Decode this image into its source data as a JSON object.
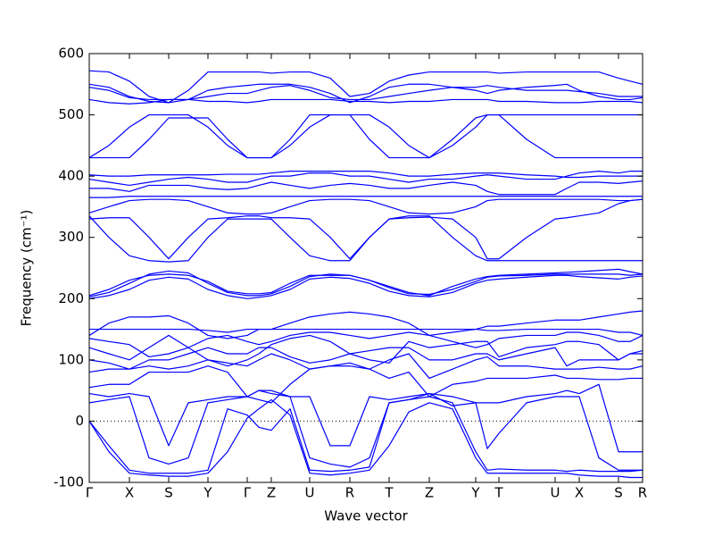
{
  "chart_data": {
    "type": "line",
    "xlabel": "Wave vector",
    "ylabel": "Frequency (cm⁻¹)",
    "color": "#0000ff",
    "x": [
      0,
      22,
      45,
      67,
      89,
      111,
      133,
      155,
      177,
      190,
      204,
      225,
      247,
      270,
      292,
      314,
      336,
      358,
      381,
      407,
      433,
      446,
      459,
      490,
      522,
      535,
      549,
      571,
      593,
      606,
      620
    ],
    "xlim": [
      0,
      620
    ],
    "xticks": [
      {
        "value": 0,
        "label": "Γ"
      },
      {
        "value": 45,
        "label": "X"
      },
      {
        "value": 89,
        "label": "S"
      },
      {
        "value": 133,
        "label": "Y"
      },
      {
        "value": 177,
        "label": "Γ"
      },
      {
        "value": 204,
        "label": "Z"
      },
      {
        "value": 247,
        "label": "U"
      },
      {
        "value": 292,
        "label": "R"
      },
      {
        "value": 336,
        "label": "T"
      },
      {
        "value": 381,
        "label": "Z"
      },
      {
        "value": 433,
        "label": "Y"
      },
      {
        "value": 459,
        "label": "T"
      },
      {
        "value": 522,
        "label": "U"
      },
      {
        "value": 549,
        "label": "X"
      },
      {
        "value": 593,
        "label": "S"
      },
      {
        "value": 620,
        "label": "R"
      }
    ],
    "ylim": [
      -100,
      600
    ],
    "yticks": [
      -100,
      0,
      100,
      200,
      300,
      400,
      500,
      600
    ],
    "hline": 0,
    "series": [
      {
        "values": [
          0,
          -50,
          -85,
          -88,
          -90,
          -90,
          -85,
          -50,
          5,
          20,
          35,
          10,
          -85,
          -88,
          -85,
          -80,
          -40,
          15,
          30,
          20,
          -60,
          -85,
          -85,
          -85,
          -85,
          -85,
          -88,
          -90,
          -90,
          -92,
          -92
        ]
      },
      {
        "values": [
          0,
          -40,
          -80,
          -85,
          -85,
          -85,
          -80,
          20,
          10,
          -10,
          -15,
          20,
          -80,
          -82,
          -80,
          -75,
          30,
          35,
          40,
          30,
          -50,
          -80,
          -78,
          -80,
          -80,
          -82,
          -80,
          -82,
          -82,
          -82,
          -80
        ]
      },
      {
        "values": [
          30,
          35,
          40,
          -60,
          -70,
          -60,
          30,
          35,
          40,
          50,
          45,
          40,
          -60,
          -70,
          -75,
          -60,
          30,
          35,
          45,
          25,
          30,
          -45,
          -20,
          30,
          40,
          40,
          40,
          -60,
          -80,
          -80,
          -80
        ]
      },
      {
        "values": [
          45,
          40,
          45,
          40,
          -40,
          30,
          35,
          40,
          40,
          50,
          50,
          40,
          40,
          -40,
          -40,
          40,
          35,
          40,
          45,
          40,
          30,
          30,
          30,
          40,
          45,
          50,
          45,
          60,
          -50,
          -50,
          -50
        ]
      },
      {
        "values": [
          55,
          60,
          60,
          80,
          80,
          80,
          90,
          80,
          40,
          35,
          30,
          60,
          85,
          90,
          90,
          85,
          70,
          80,
          40,
          60,
          65,
          70,
          70,
          70,
          75,
          70,
          70,
          68,
          68,
          70,
          70
        ]
      },
      {
        "values": [
          80,
          85,
          85,
          90,
          85,
          90,
          100,
          95,
          90,
          100,
          110,
          100,
          85,
          90,
          95,
          85,
          100,
          110,
          70,
          85,
          100,
          105,
          90,
          90,
          85,
          85,
          85,
          88,
          85,
          85,
          90
        ]
      },
      {
        "values": [
          100,
          95,
          85,
          100,
          100,
          110,
          120,
          110,
          110,
          120,
          120,
          105,
          95,
          100,
          110,
          115,
          120,
          120,
          100,
          100,
          110,
          110,
          100,
          110,
          120,
          90,
          100,
          100,
          100,
          110,
          110
        ]
      },
      {
        "values": [
          120,
          110,
          100,
          120,
          140,
          120,
          100,
          90,
          100,
          110,
          125,
          135,
          140,
          130,
          110,
          100,
          95,
          130,
          120,
          125,
          130,
          130,
          105,
          120,
          125,
          130,
          130,
          125,
          100,
          110,
          115
        ]
      },
      {
        "values": [
          135,
          130,
          125,
          105,
          110,
          120,
          135,
          140,
          130,
          125,
          130,
          140,
          145,
          145,
          140,
          135,
          140,
          145,
          140,
          130,
          120,
          125,
          135,
          140,
          140,
          145,
          145,
          140,
          130,
          130,
          140
        ]
      },
      {
        "values": [
          150,
          150,
          150,
          150,
          150,
          150,
          148,
          145,
          150,
          150,
          150,
          150,
          150,
          150,
          150,
          150,
          150,
          150,
          150,
          150,
          150,
          148,
          148,
          150,
          150,
          150,
          150,
          150,
          145,
          145,
          140
        ]
      },
      {
        "values": [
          140,
          160,
          170,
          170,
          172,
          160,
          140,
          135,
          140,
          150,
          150,
          160,
          170,
          175,
          178,
          175,
          170,
          160,
          140,
          145,
          150,
          155,
          155,
          160,
          165,
          165,
          165,
          170,
          175,
          178,
          180
        ]
      },
      {
        "values": [
          200,
          205,
          215,
          230,
          235,
          232,
          215,
          205,
          200,
          202,
          205,
          215,
          232,
          235,
          233,
          225,
          212,
          205,
          203,
          210,
          225,
          230,
          232,
          235,
          238,
          238,
          236,
          234,
          232,
          235,
          237
        ]
      },
      {
        "values": [
          203,
          210,
          225,
          240,
          245,
          242,
          225,
          210,
          205,
          205,
          208,
          220,
          236,
          240,
          238,
          230,
          218,
          208,
          207,
          215,
          228,
          235,
          237,
          238,
          240,
          240,
          240,
          240,
          240,
          238,
          240
        ]
      },
      {
        "values": [
          205,
          215,
          230,
          238,
          240,
          238,
          228,
          212,
          208,
          208,
          210,
          225,
          238,
          238,
          238,
          230,
          220,
          210,
          205,
          220,
          232,
          236,
          238,
          240,
          242,
          243,
          244,
          246,
          248,
          244,
          240
        ]
      },
      {
        "values": [
          335,
          300,
          270,
          262,
          260,
          262,
          300,
          330,
          330,
          330,
          330,
          300,
          270,
          262,
          262,
          300,
          330,
          335,
          335,
          300,
          270,
          262,
          262,
          262,
          262,
          262,
          262,
          262,
          262,
          262,
          262
        ]
      },
      {
        "values": [
          330,
          332,
          332,
          300,
          265,
          300,
          330,
          332,
          335,
          335,
          332,
          332,
          330,
          300,
          265,
          300,
          330,
          332,
          333,
          330,
          300,
          265,
          265,
          300,
          330,
          332,
          335,
          340,
          355,
          360,
          362
        ]
      },
      {
        "values": [
          340,
          350,
          360,
          362,
          362,
          360,
          350,
          340,
          338,
          338,
          340,
          350,
          360,
          362,
          362,
          360,
          350,
          340,
          338,
          340,
          350,
          360,
          362,
          362,
          362,
          362,
          362,
          362,
          360,
          360,
          362
        ]
      },
      {
        "values": [
          365,
          365,
          367,
          367,
          367,
          367,
          367,
          367,
          367,
          367,
          367,
          367,
          367,
          367,
          367,
          367,
          367,
          367,
          367,
          367,
          367,
          367,
          367,
          367,
          367,
          367,
          367,
          367,
          367,
          367,
          367
        ]
      },
      {
        "values": [
          380,
          380,
          375,
          385,
          385,
          385,
          380,
          378,
          380,
          385,
          390,
          385,
          380,
          385,
          388,
          385,
          380,
          380,
          385,
          390,
          385,
          375,
          370,
          370,
          370,
          380,
          390,
          390,
          388,
          390,
          392
        ]
      },
      {
        "values": [
          395,
          390,
          385,
          390,
          395,
          398,
          395,
          390,
          390,
          395,
          400,
          400,
          405,
          405,
          400,
          400,
          395,
          390,
          395,
          395,
          400,
          402,
          400,
          395,
          395,
          400,
          405,
          408,
          405,
          408,
          408
        ]
      },
      {
        "values": [
          402,
          400,
          400,
          402,
          402,
          402,
          402,
          403,
          403,
          403,
          405,
          408,
          408,
          408,
          408,
          408,
          405,
          400,
          400,
          403,
          405,
          405,
          405,
          402,
          400,
          398,
          398,
          400,
          400,
          400,
          400
        ]
      },
      {
        "values": [
          430,
          450,
          480,
          500,
          500,
          500,
          480,
          450,
          430,
          430,
          430,
          450,
          480,
          500,
          500,
          500,
          480,
          450,
          430,
          450,
          480,
          500,
          500,
          500,
          500,
          500,
          500,
          500,
          500,
          500,
          500
        ]
      },
      {
        "values": [
          430,
          430,
          430,
          460,
          495,
          495,
          495,
          460,
          430,
          430,
          430,
          460,
          500,
          500,
          500,
          460,
          430,
          430,
          430,
          460,
          495,
          500,
          500,
          460,
          430,
          430,
          430,
          430,
          430,
          430,
          430
        ]
      },
      {
        "values": [
          572,
          570,
          555,
          530,
          520,
          540,
          570,
          570,
          570,
          570,
          568,
          570,
          570,
          560,
          530,
          535,
          555,
          565,
          570,
          570,
          570,
          570,
          568,
          570,
          570,
          570,
          570,
          570,
          560,
          555,
          550
        ]
      },
      {
        "values": [
          550,
          545,
          530,
          522,
          520,
          525,
          540,
          545,
          548,
          550,
          550,
          550,
          545,
          535,
          520,
          530,
          545,
          550,
          550,
          545,
          540,
          535,
          540,
          545,
          548,
          550,
          540,
          530,
          525,
          525,
          528
        ]
      },
      {
        "values": [
          545,
          540,
          528,
          525,
          525,
          525,
          530,
          535,
          535,
          540,
          545,
          548,
          540,
          528,
          525,
          525,
          530,
          535,
          540,
          545,
          545,
          548,
          545,
          540,
          540,
          540,
          538,
          535,
          530,
          530,
          530
        ]
      },
      {
        "values": [
          525,
          520,
          518,
          520,
          525,
          525,
          522,
          522,
          520,
          522,
          525,
          525,
          525,
          525,
          522,
          522,
          520,
          522,
          522,
          525,
          525,
          525,
          522,
          522,
          520,
          520,
          520,
          522,
          522,
          522,
          520
        ]
      }
    ]
  }
}
